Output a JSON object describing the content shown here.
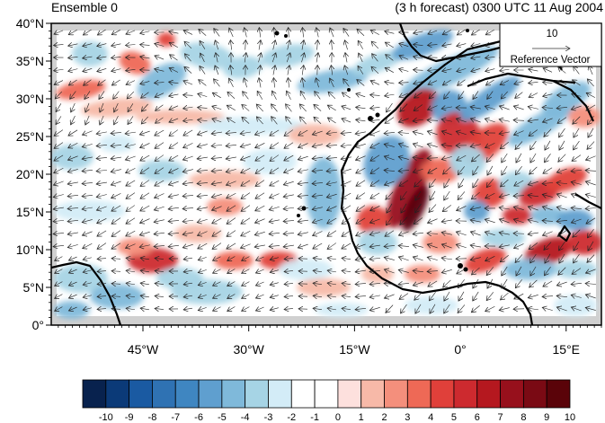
{
  "title_left": "Ensemble 0",
  "title_right": "(3 h forecast) 0300 UTC 11 Aug 2004",
  "map": {
    "lon_range": [
      -58,
      20
    ],
    "lat_range": [
      0,
      40
    ],
    "lat_ticks": [
      {
        "value": 40,
        "label": "40°N"
      },
      {
        "value": 35,
        "label": "35°N"
      },
      {
        "value": 30,
        "label": "30°N"
      },
      {
        "value": 25,
        "label": "25°N"
      },
      {
        "value": 20,
        "label": "20°N"
      },
      {
        "value": 15,
        "label": "15°N"
      },
      {
        "value": 10,
        "label": "10°N"
      },
      {
        "value": 5,
        "label": "5°N"
      },
      {
        "value": 0,
        "label": "0°"
      }
    ],
    "lon_ticks": [
      {
        "value": -45,
        "label": "45°W"
      },
      {
        "value": -30,
        "label": "30°W"
      },
      {
        "value": -15,
        "label": "15°W"
      },
      {
        "value": 0,
        "label": "0°"
      },
      {
        "value": 15,
        "label": "15°E"
      }
    ]
  },
  "reference_vector": {
    "value": "10",
    "label": "Reference Vector"
  },
  "colorbar": {
    "labels": [
      "-10",
      "-9",
      "-8",
      "-7",
      "-6",
      "-5",
      "-4",
      "-3",
      "-2",
      "-1",
      "0",
      "1",
      "2",
      "3",
      "4",
      "5",
      "6",
      "7",
      "8",
      "9",
      "10"
    ],
    "colors": [
      "#08224e",
      "#0b3a78",
      "#1a5aa2",
      "#2f72b3",
      "#3f86c1",
      "#5f9fcf",
      "#7fb9da",
      "#a6d4e5",
      "#d3ecf7",
      "#ffffff",
      "#ffffff",
      "#fde0dd",
      "#f7b9a8",
      "#f48f7c",
      "#ee6956",
      "#e0403a",
      "#cd2a2f",
      "#b5181f",
      "#97101c",
      "#7a0a14",
      "#5a0309"
    ],
    "colors_note": ""
  },
  "colors": {
    "missing": "#c8c8c8",
    "coast": "#000000"
  }
}
